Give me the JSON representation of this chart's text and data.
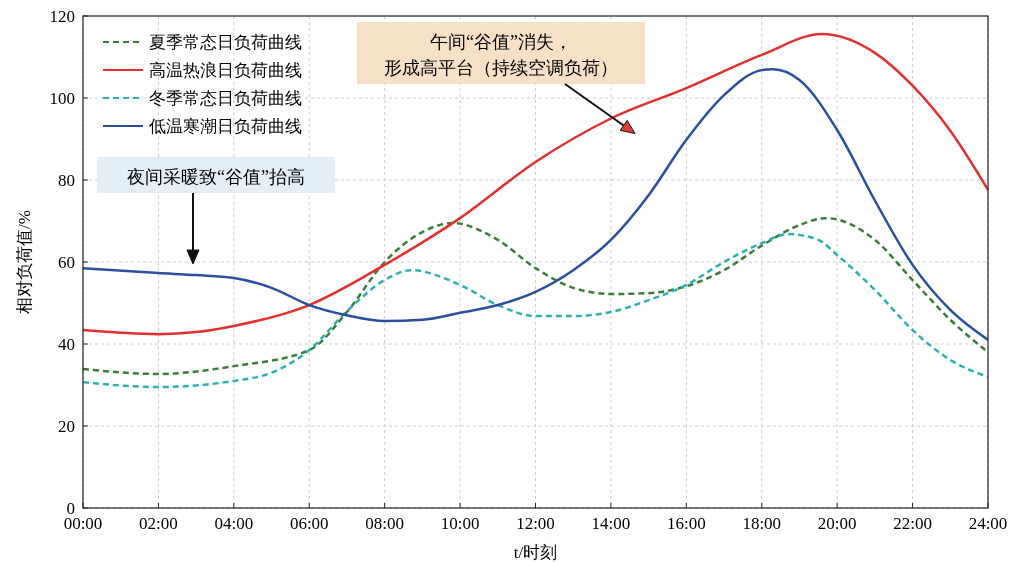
{
  "chart_data": {
    "type": "line",
    "xlabel": "t/时刻",
    "ylabel": "相对负荷值/%",
    "xlim": [
      0,
      24
    ],
    "xticks": [
      {
        "value": 0,
        "label": "00:00"
      },
      {
        "value": 2,
        "label": "02:00"
      },
      {
        "value": 4,
        "label": "04:00"
      },
      {
        "value": 6,
        "label": "06:00"
      },
      {
        "value": 8,
        "label": "08:00"
      },
      {
        "value": 10,
        "label": "10:00"
      },
      {
        "value": 12,
        "label": "12:00"
      },
      {
        "value": 14,
        "label": "14:00"
      },
      {
        "value": 16,
        "label": "16:00"
      },
      {
        "value": 18,
        "label": "18:00"
      },
      {
        "value": 20,
        "label": "20:00"
      },
      {
        "value": 22,
        "label": "22:00"
      },
      {
        "value": 24,
        "label": "24:00"
      }
    ],
    "ylim": [
      0,
      120
    ],
    "yticks": [
      0,
      20,
      40,
      60,
      80,
      100,
      120
    ],
    "grid": true,
    "legend": "top left",
    "marker": "none",
    "series": [
      {
        "name": "夏季常态日负荷曲线",
        "color": "#3a7d3a",
        "line_style": "dashed",
        "x": [
          0,
          2,
          4,
          6,
          7,
          8,
          9,
          9.8,
          11,
          12,
          13,
          14,
          15,
          16,
          17,
          18,
          19,
          19.7,
          21,
          22,
          23,
          24
        ],
        "values": [
          33.9,
          32.7,
          34.6,
          38.5,
          47.8,
          60,
          67.3,
          69.5,
          65.4,
          58.5,
          53.7,
          52.2,
          52.4,
          54.1,
          58,
          64,
          69,
          70.7,
          65.4,
          55.6,
          45.9,
          38
        ]
      },
      {
        "name": "高温热浪日负荷曲线",
        "color": "#e03030",
        "line_style": "solid",
        "x": [
          0,
          2,
          3,
          4,
          6,
          8,
          10,
          12,
          14,
          16,
          18,
          19.6,
          21,
          22,
          23,
          24
        ],
        "values": [
          43.4,
          42.4,
          42.9,
          44.4,
          49.5,
          59.3,
          70.7,
          84.4,
          95,
          102.4,
          110.5,
          115.6,
          111,
          103,
          92,
          77.6
        ]
      },
      {
        "name": "冬季常态日负荷曲线",
        "color": "#2eb0b0",
        "line_style": "dashed",
        "x": [
          0,
          2,
          4,
          5,
          6,
          7,
          8,
          8.7,
          10,
          11,
          12,
          13,
          14,
          15,
          16,
          17,
          18,
          18.7,
          19.5,
          20,
          21,
          22,
          23,
          24
        ],
        "values": [
          30.7,
          29.5,
          31,
          33,
          38.5,
          48,
          55.6,
          58,
          54.4,
          49.5,
          46.8,
          46.8,
          47.8,
          50.7,
          54.4,
          60,
          64.6,
          66.8,
          65.4,
          61.7,
          53.2,
          43.4,
          36.1,
          32
        ]
      },
      {
        "name": "低温寒潮日负荷曲线",
        "color": "#2a4f9e",
        "line_style": "solid",
        "x": [
          0,
          2,
          3,
          4,
          5,
          6,
          7,
          8,
          9,
          10,
          11,
          12,
          13,
          14,
          15,
          16,
          17,
          18,
          18.3,
          19,
          20,
          21,
          22,
          23,
          24
        ],
        "values": [
          58.5,
          57.3,
          56.8,
          56.1,
          53.7,
          49.5,
          47,
          45.6,
          45.9,
          47.6,
          49.5,
          52.7,
          58,
          65.4,
          76.3,
          89.8,
          100.7,
          106.8,
          107,
          104.4,
          92.2,
          75,
          59.3,
          48.3,
          41
        ]
      }
    ],
    "annotations": [
      "午间“谷值”消失，形成高平台（持续空调负荷）",
      "夜间采暖致“谷值”抬高"
    ]
  }
}
